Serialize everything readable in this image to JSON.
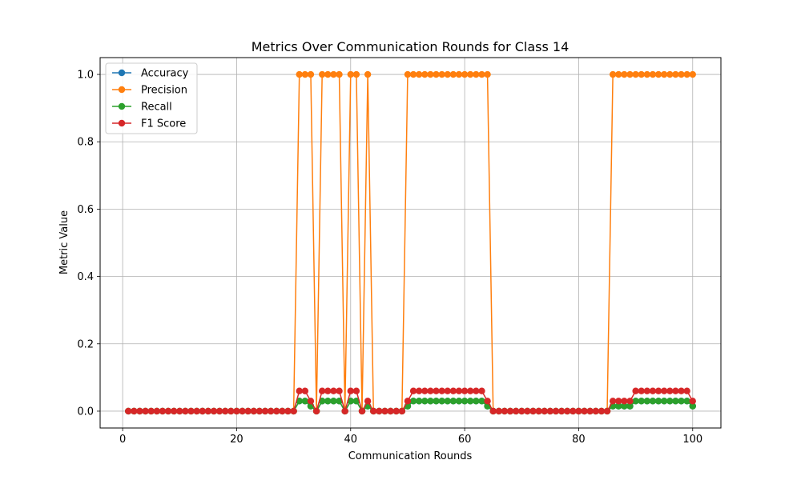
{
  "chart_data": {
    "type": "line",
    "title": "Metrics Over Communication Rounds for Class 14",
    "xlabel": "Communication Rounds",
    "ylabel": "Metric Value",
    "xlim": [
      -3.95,
      104.95
    ],
    "ylim": [
      -0.05,
      1.05
    ],
    "xticks": [
      0,
      20,
      40,
      60,
      80,
      100
    ],
    "yticks": [
      0.0,
      0.2,
      0.4,
      0.6,
      0.8,
      1.0
    ],
    "grid": true,
    "legend_position": "top-left",
    "x": [
      1,
      2,
      3,
      4,
      5,
      6,
      7,
      8,
      9,
      10,
      11,
      12,
      13,
      14,
      15,
      16,
      17,
      18,
      19,
      20,
      21,
      22,
      23,
      24,
      25,
      26,
      27,
      28,
      29,
      30,
      31,
      32,
      33,
      34,
      35,
      36,
      37,
      38,
      39,
      40,
      41,
      42,
      43,
      44,
      45,
      46,
      47,
      48,
      49,
      50,
      51,
      52,
      53,
      54,
      55,
      56,
      57,
      58,
      59,
      60,
      61,
      62,
      63,
      64,
      65,
      66,
      67,
      68,
      69,
      70,
      71,
      72,
      73,
      74,
      75,
      76,
      77,
      78,
      79,
      80,
      81,
      82,
      83,
      84,
      85,
      86,
      87,
      88,
      89,
      90,
      91,
      92,
      93,
      94,
      95,
      96,
      97,
      98,
      99,
      100
    ],
    "series": [
      {
        "name": "Accuracy",
        "color": "#1f77b4",
        "values": [
          0,
          0,
          0,
          0,
          0,
          0,
          0,
          0,
          0,
          0,
          0,
          0,
          0,
          0,
          0,
          0,
          0,
          0,
          0,
          0,
          0,
          0,
          0,
          0,
          0,
          0,
          0,
          0,
          0,
          0,
          0.03,
          0.03,
          0.015,
          0,
          0.03,
          0.03,
          0.03,
          0.03,
          0,
          0.03,
          0.03,
          0,
          0.015,
          0,
          0,
          0,
          0,
          0,
          0,
          0.015,
          0.03,
          0.03,
          0.03,
          0.03,
          0.03,
          0.03,
          0.03,
          0.03,
          0.03,
          0.03,
          0.03,
          0.03,
          0.03,
          0.015,
          0,
          0,
          0,
          0,
          0,
          0,
          0,
          0,
          0,
          0,
          0,
          0,
          0,
          0,
          0,
          0,
          0,
          0,
          0,
          0,
          0,
          0.015,
          0.015,
          0.015,
          0.015,
          0.03,
          0.03,
          0.03,
          0.03,
          0.03,
          0.03,
          0.03,
          0.03,
          0.03,
          0.03,
          0.015
        ]
      },
      {
        "name": "Precision",
        "color": "#ff7f0e",
        "values": [
          0,
          0,
          0,
          0,
          0,
          0,
          0,
          0,
          0,
          0,
          0,
          0,
          0,
          0,
          0,
          0,
          0,
          0,
          0,
          0,
          0,
          0,
          0,
          0,
          0,
          0,
          0,
          0,
          0,
          0,
          1,
          1,
          1,
          0,
          1,
          1,
          1,
          1,
          0,
          1,
          1,
          0,
          1,
          0,
          0,
          0,
          0,
          0,
          0,
          1,
          1,
          1,
          1,
          1,
          1,
          1,
          1,
          1,
          1,
          1,
          1,
          1,
          1,
          1,
          0,
          0,
          0,
          0,
          0,
          0,
          0,
          0,
          0,
          0,
          0,
          0,
          0,
          0,
          0,
          0,
          0,
          0,
          0,
          0,
          0,
          1,
          1,
          1,
          1,
          1,
          1,
          1,
          1,
          1,
          1,
          1,
          1,
          1,
          1,
          1
        ]
      },
      {
        "name": "Recall",
        "color": "#2ca02c",
        "values": [
          0,
          0,
          0,
          0,
          0,
          0,
          0,
          0,
          0,
          0,
          0,
          0,
          0,
          0,
          0,
          0,
          0,
          0,
          0,
          0,
          0,
          0,
          0,
          0,
          0,
          0,
          0,
          0,
          0,
          0,
          0.03,
          0.03,
          0.015,
          0,
          0.03,
          0.03,
          0.03,
          0.03,
          0,
          0.03,
          0.03,
          0,
          0.015,
          0,
          0,
          0,
          0,
          0,
          0,
          0.015,
          0.03,
          0.03,
          0.03,
          0.03,
          0.03,
          0.03,
          0.03,
          0.03,
          0.03,
          0.03,
          0.03,
          0.03,
          0.03,
          0.015,
          0,
          0,
          0,
          0,
          0,
          0,
          0,
          0,
          0,
          0,
          0,
          0,
          0,
          0,
          0,
          0,
          0,
          0,
          0,
          0,
          0,
          0.015,
          0.015,
          0.015,
          0.015,
          0.03,
          0.03,
          0.03,
          0.03,
          0.03,
          0.03,
          0.03,
          0.03,
          0.03,
          0.03,
          0.015
        ]
      },
      {
        "name": "F1 Score",
        "color": "#d62728",
        "values": [
          0,
          0,
          0,
          0,
          0,
          0,
          0,
          0,
          0,
          0,
          0,
          0,
          0,
          0,
          0,
          0,
          0,
          0,
          0,
          0,
          0,
          0,
          0,
          0,
          0,
          0,
          0,
          0,
          0,
          0,
          0.06,
          0.06,
          0.03,
          0,
          0.06,
          0.06,
          0.06,
          0.06,
          0,
          0.06,
          0.06,
          0,
          0.03,
          0,
          0,
          0,
          0,
          0,
          0,
          0.03,
          0.06,
          0.06,
          0.06,
          0.06,
          0.06,
          0.06,
          0.06,
          0.06,
          0.06,
          0.06,
          0.06,
          0.06,
          0.06,
          0.03,
          0,
          0,
          0,
          0,
          0,
          0,
          0,
          0,
          0,
          0,
          0,
          0,
          0,
          0,
          0,
          0,
          0,
          0,
          0,
          0,
          0,
          0.03,
          0.03,
          0.03,
          0.03,
          0.06,
          0.06,
          0.06,
          0.06,
          0.06,
          0.06,
          0.06,
          0.06,
          0.06,
          0.06,
          0.03
        ]
      }
    ]
  }
}
